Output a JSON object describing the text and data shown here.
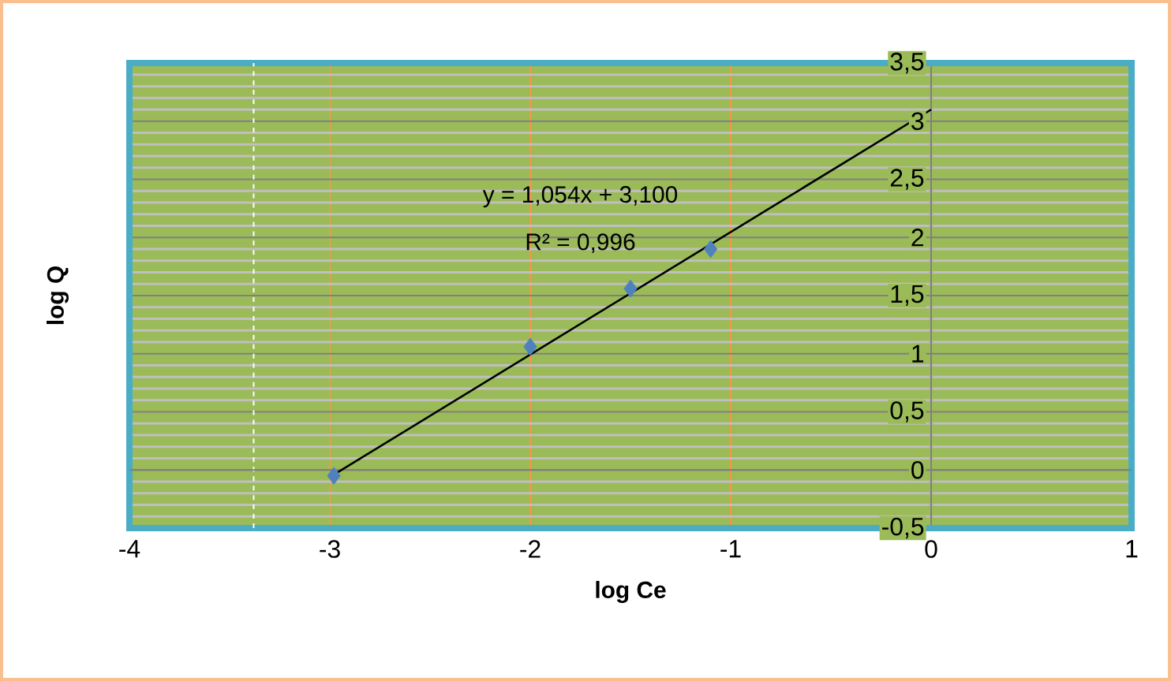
{
  "chart_data": {
    "type": "scatter",
    "xlabel": "log Ce",
    "ylabel": "log Q",
    "annotations": [
      "y = 1,054x + 3,100",
      "R² = 0,996"
    ],
    "series": [
      {
        "type": "scatter",
        "color": "#4f81bd",
        "marker": "diamond",
        "x": [
          -2.98,
          -2.0,
          -1.5,
          -1.1
        ],
        "values": [
          -0.05,
          1.06,
          1.56,
          1.9
        ]
      },
      {
        "type": "line",
        "color": "#000000",
        "marker": "none",
        "line_style": "solid",
        "x": [
          -2.97,
          0
        ],
        "values": [
          -0.03,
          3.1
        ]
      }
    ],
    "xlim": [
      -4,
      1
    ],
    "ylim": [
      -0.5,
      3.5
    ],
    "xticks": [
      -4,
      -3,
      -2,
      -1,
      0,
      1
    ],
    "yticks": [
      {
        "value": -0.5,
        "label": "-0,5"
      },
      0,
      {
        "value": 0.5,
        "label": "0,5"
      },
      1,
      {
        "value": 1.5,
        "label": "1,5"
      },
      2,
      {
        "value": 2.5,
        "label": "2,5"
      },
      3,
      {
        "value": 3.5,
        "label": "3,5"
      }
    ],
    "grid": true,
    "ref_lines": [
      {
        "axis": "x",
        "value": -3.38,
        "color": "#ffffff",
        "line_style": "dashed"
      }
    ]
  }
}
